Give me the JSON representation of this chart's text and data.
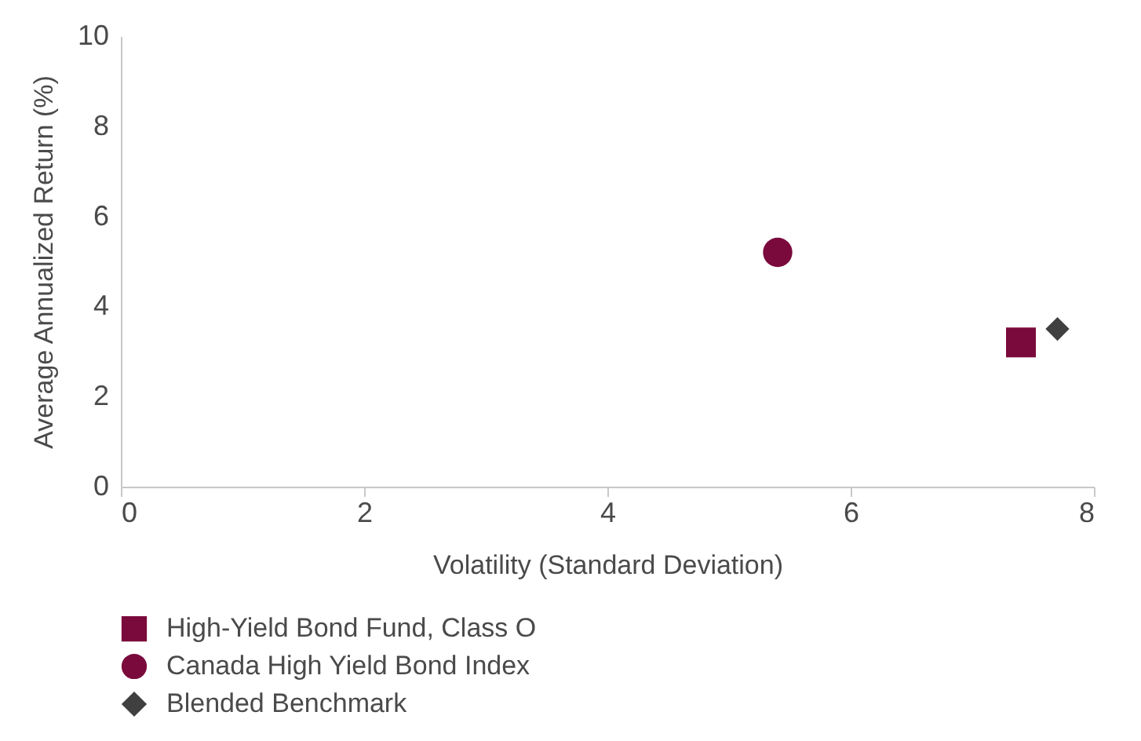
{
  "chart_data": {
    "type": "scatter",
    "xlabel": "Volatility (Standard Deviation)",
    "ylabel": "Average Annualized Return (%)",
    "xlim": [
      0,
      8
    ],
    "xticks": [
      0,
      2,
      4,
      6,
      8
    ],
    "ylim": [
      0,
      10
    ],
    "yticks": [
      0,
      2,
      4,
      6,
      8,
      10
    ],
    "grid": false,
    "legend": "bottom left",
    "series": [
      {
        "name": "High-Yield Bond Fund, Class O",
        "color": "#7a0a3c",
        "marker": "square",
        "x": [
          7.4
        ],
        "values": [
          3.2
        ]
      },
      {
        "name": "Canada High Yield Bond Index",
        "color": "#7a0a3c",
        "marker": "circle",
        "x": [
          5.4
        ],
        "values": [
          5.2
        ]
      },
      {
        "name": "Blended Benchmark",
        "color": "#404040",
        "marker": "diamond",
        "x": [
          7.7
        ],
        "values": [
          3.5
        ]
      }
    ]
  }
}
